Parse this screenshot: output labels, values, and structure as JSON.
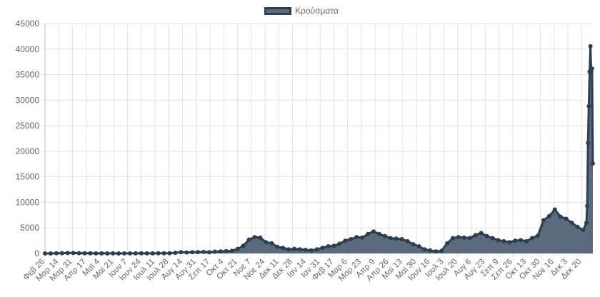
{
  "chart_data": {
    "type": "area",
    "legend_position": "top",
    "grid": true,
    "colors": {
      "line": "#2c3e50",
      "fill": "#5b6a7d",
      "grid": "#e2e2e2"
    },
    "ylim": [
      0,
      45000
    ],
    "y_ticks": [
      0,
      5000,
      10000,
      15000,
      20000,
      25000,
      30000,
      35000,
      40000,
      45000
    ],
    "x_tick_labels": [
      "Φεβ 26",
      "Μαρ 14",
      "Μαρ 31",
      "Απρ 17",
      "Μαϊ 4",
      "Μαϊ 21",
      "Ιουν 7",
      "Ιουν 24",
      "Ιουλ 11",
      "Ιουλ 28",
      "Αυγ 14",
      "Αυγ 31",
      "Σεπ 17",
      "Οκτ 4",
      "Οκτ 21",
      "Νοε 7",
      "Νοε 24",
      "Δεκ 11",
      "Δεκ 28",
      "Ιαν 14",
      "Ιαν 31",
      "Φεβ 17",
      "Μαρ 6",
      "Μαρ 23",
      "Απρ 9",
      "Απρ 26",
      "Μαϊ 13",
      "Μαϊ 30",
      "Ιουν 16",
      "Ιουλ 3",
      "Ιουλ 20",
      "Αυγ 6",
      "Αυγ 23",
      "Σεπ 9",
      "Σεπ 26",
      "Οκτ 13",
      "Οκτ 30",
      "Νοε 16",
      "Δεκ 3",
      "Δεκ 20"
    ],
    "x_tick_interval_days": 17,
    "x_start": "2020-02-26",
    "x_end": "2022-01-03",
    "series": [
      {
        "name": "Κρούσματα",
        "points": [
          [
            "2020-02-26",
            3
          ],
          [
            "2020-03-04",
            2
          ],
          [
            "2020-03-11",
            40
          ],
          [
            "2020-03-18",
            50
          ],
          [
            "2020-03-25",
            80
          ],
          [
            "2020-04-01",
            90
          ],
          [
            "2020-04-08",
            60
          ],
          [
            "2020-04-15",
            40
          ],
          [
            "2020-04-22",
            30
          ],
          [
            "2020-04-29",
            15
          ],
          [
            "2020-05-06",
            10
          ],
          [
            "2020-05-13",
            8
          ],
          [
            "2020-05-20",
            10
          ],
          [
            "2020-05-27",
            5
          ],
          [
            "2020-06-03",
            10
          ],
          [
            "2020-06-10",
            15
          ],
          [
            "2020-06-17",
            20
          ],
          [
            "2020-06-24",
            30
          ],
          [
            "2020-07-01",
            15
          ],
          [
            "2020-07-08",
            20
          ],
          [
            "2020-07-15",
            30
          ],
          [
            "2020-07-22",
            40
          ],
          [
            "2020-07-29",
            50
          ],
          [
            "2020-08-05",
            120
          ],
          [
            "2020-08-12",
            250
          ],
          [
            "2020-08-19",
            200
          ],
          [
            "2020-08-26",
            250
          ],
          [
            "2020-09-02",
            270
          ],
          [
            "2020-09-09",
            300
          ],
          [
            "2020-09-16",
            250
          ],
          [
            "2020-09-23",
            350
          ],
          [
            "2020-09-30",
            400
          ],
          [
            "2020-10-07",
            450
          ],
          [
            "2020-10-14",
            500
          ],
          [
            "2020-10-21",
            880
          ],
          [
            "2020-10-28",
            1500
          ],
          [
            "2020-11-04",
            2700
          ],
          [
            "2020-11-11",
            3200
          ],
          [
            "2020-11-18",
            3100
          ],
          [
            "2020-11-25",
            2200
          ],
          [
            "2020-12-02",
            2000
          ],
          [
            "2020-12-09",
            1300
          ],
          [
            "2020-12-16",
            1100
          ],
          [
            "2020-12-23",
            800
          ],
          [
            "2020-12-30",
            900
          ],
          [
            "2021-01-06",
            800
          ],
          [
            "2021-01-13",
            700
          ],
          [
            "2021-01-20",
            600
          ],
          [
            "2021-01-27",
            800
          ],
          [
            "2021-02-03",
            1100
          ],
          [
            "2021-02-10",
            1400
          ],
          [
            "2021-02-17",
            1500
          ],
          [
            "2021-02-24",
            1900
          ],
          [
            "2021-03-03",
            2500
          ],
          [
            "2021-03-10",
            2800
          ],
          [
            "2021-03-17",
            3200
          ],
          [
            "2021-03-24",
            3100
          ],
          [
            "2021-03-31",
            3800
          ],
          [
            "2021-04-07",
            4300
          ],
          [
            "2021-04-14",
            3800
          ],
          [
            "2021-04-21",
            3400
          ],
          [
            "2021-04-28",
            3000
          ],
          [
            "2021-05-05",
            2900
          ],
          [
            "2021-05-12",
            2800
          ],
          [
            "2021-05-19",
            2400
          ],
          [
            "2021-05-26",
            1800
          ],
          [
            "2021-06-02",
            1400
          ],
          [
            "2021-06-09",
            800
          ],
          [
            "2021-06-16",
            600
          ],
          [
            "2021-06-23",
            400
          ],
          [
            "2021-06-30",
            500
          ],
          [
            "2021-07-07",
            2000
          ],
          [
            "2021-07-14",
            3000
          ],
          [
            "2021-07-21",
            3200
          ],
          [
            "2021-07-28",
            3100
          ],
          [
            "2021-08-04",
            3000
          ],
          [
            "2021-08-11",
            3600
          ],
          [
            "2021-08-18",
            4000
          ],
          [
            "2021-08-25",
            3400
          ],
          [
            "2021-09-01",
            3000
          ],
          [
            "2021-09-08",
            2600
          ],
          [
            "2021-09-15",
            2400
          ],
          [
            "2021-09-22",
            2200
          ],
          [
            "2021-09-29",
            2500
          ],
          [
            "2021-10-06",
            2600
          ],
          [
            "2021-10-13",
            2400
          ],
          [
            "2021-10-20",
            3000
          ],
          [
            "2021-10-27",
            3500
          ],
          [
            "2021-11-03",
            6500
          ],
          [
            "2021-11-10",
            7300
          ],
          [
            "2021-11-17",
            8600
          ],
          [
            "2021-11-24",
            7200
          ],
          [
            "2021-12-01",
            6800
          ],
          [
            "2021-12-08",
            6000
          ],
          [
            "2021-12-15",
            5200
          ],
          [
            "2021-12-22",
            4600
          ],
          [
            "2021-12-26",
            6000
          ],
          [
            "2021-12-27",
            9300
          ],
          [
            "2021-12-28",
            21657
          ],
          [
            "2021-12-29",
            28828
          ],
          [
            "2021-12-30",
            35580
          ],
          [
            "2021-12-31",
            40560
          ],
          [
            "2022-01-01",
            35600
          ],
          [
            "2022-01-02",
            36200
          ],
          [
            "2022-01-03",
            17600
          ]
        ]
      }
    ]
  }
}
